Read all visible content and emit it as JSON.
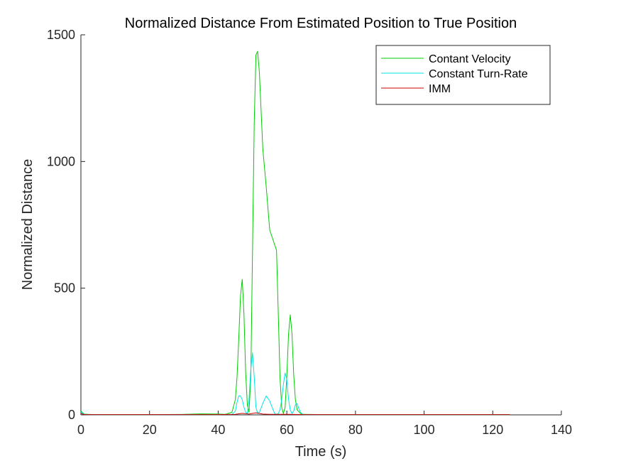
{
  "chart_data": {
    "type": "line",
    "title": "Normalized Distance From Estimated Position to True Position",
    "xlabel": "Time (s)",
    "ylabel": "Normalized Distance",
    "xlim": [
      0,
      140
    ],
    "ylim": [
      0,
      1500
    ],
    "xticks": [
      "0",
      "20",
      "40",
      "60",
      "80",
      "100",
      "120",
      "140"
    ],
    "yticks": [
      "0",
      "500",
      "1000",
      "1500"
    ],
    "grid": false,
    "legend_position": "top-right",
    "series": [
      {
        "name": "Contant Velocity",
        "color": "#00cc00",
        "x": [
          0,
          0.5,
          1,
          2,
          5,
          10,
          20,
          30,
          35,
          40,
          42,
          43,
          44,
          45,
          45.5,
          46,
          46.5,
          47,
          47.5,
          48,
          48.5,
          49,
          49.5,
          50,
          50.5,
          51,
          51.5,
          52,
          52.5,
          53,
          54,
          55,
          56,
          57,
          57.5,
          58,
          58.5,
          59,
          59.5,
          60,
          60.5,
          61,
          61.5,
          62,
          62.5,
          63,
          64,
          65,
          70,
          80,
          90,
          100,
          110,
          120,
          125
        ],
        "y": [
          15,
          8,
          3,
          2,
          1,
          1,
          1,
          2,
          4,
          3,
          2,
          6,
          10,
          60,
          150,
          300,
          470,
          535,
          400,
          170,
          40,
          10,
          150,
          650,
          1150,
          1420,
          1435,
          1350,
          1200,
          1050,
          900,
          730,
          690,
          650,
          400,
          150,
          30,
          5,
          30,
          150,
          320,
          395,
          320,
          160,
          60,
          20,
          5,
          2,
          1,
          1,
          1,
          1,
          1,
          1,
          1
        ]
      },
      {
        "name": "Constant Turn-Rate",
        "color": "#00e5e5",
        "x": [
          0,
          0.5,
          1,
          2,
          5,
          10,
          20,
          30,
          40,
          44,
          45,
          45.5,
          46,
          46.5,
          47,
          47.5,
          48,
          48.5,
          49,
          49.5,
          50,
          50.5,
          51,
          51.5,
          52,
          53,
          54,
          55,
          56,
          56.5,
          57,
          57.5,
          58,
          58.5,
          59,
          59.5,
          60,
          60.5,
          61,
          61.5,
          62,
          62.5,
          63,
          63.5,
          64,
          64.5,
          65,
          70,
          80,
          90,
          100,
          110,
          120,
          125
        ],
        "y": [
          12,
          6,
          2,
          1,
          1,
          1,
          1,
          1,
          1,
          2,
          15,
          50,
          75,
          75,
          60,
          30,
          10,
          5,
          60,
          180,
          245,
          150,
          30,
          5,
          10,
          45,
          75,
          55,
          20,
          5,
          2,
          5,
          20,
          60,
          120,
          165,
          140,
          60,
          20,
          5,
          15,
          40,
          45,
          25,
          10,
          3,
          1,
          1,
          1,
          1,
          1,
          1,
          1,
          1
        ]
      },
      {
        "name": "IMM",
        "color": "#cc0000",
        "x": [
          0,
          0.5,
          1,
          5,
          10,
          20,
          30,
          40,
          45,
          47,
          49,
          51,
          53,
          55,
          60,
          65,
          70,
          80,
          90,
          100,
          110,
          120,
          125
        ],
        "y": [
          5,
          3,
          1,
          1,
          1,
          1,
          1,
          1,
          2,
          6,
          3,
          8,
          3,
          2,
          2,
          1,
          1,
          1,
          1,
          1,
          1,
          1,
          1
        ]
      }
    ]
  }
}
